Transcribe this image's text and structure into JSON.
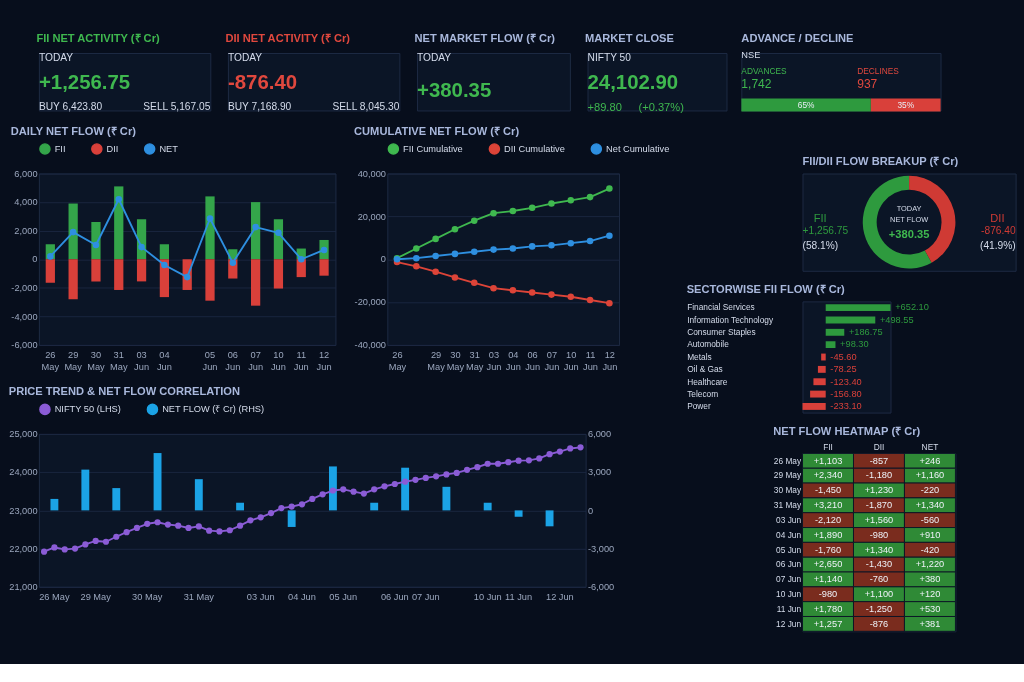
{
  "chart_data": [
    {
      "type": "other",
      "title": "FII NET ACTIVITY (₹ Cr)",
      "annotations": [
        "TODAY",
        "+1,256.75",
        "BUY  6,423.80",
        "SELL  5,167.05"
      ]
    },
    {
      "type": "other",
      "title": "DII NET ACTIVITY (₹ Cr)",
      "annotations": [
        "TODAY",
        "-876.40",
        "BUY  7,168.90",
        "SELL  8,045.30"
      ]
    },
    {
      "type": "other",
      "title": "NET MARKET FLOW (₹ Cr)",
      "annotations": [
        "TODAY",
        "+380.35"
      ]
    },
    {
      "type": "other",
      "title": "MARKET CLOSE",
      "annotations": [
        "NIFTY 50",
        "24,102.90",
        "+89.80",
        "(+0.37%)"
      ]
    },
    {
      "type": "bar",
      "title": "ADVANCE / DECLINE",
      "orientation": "horizontal",
      "stacked": true,
      "categories": [
        null
      ],
      "annotations": [
        "NSE",
        "ADVANCES",
        "1,742",
        "DECLINES",
        "937"
      ],
      "series": [
        {
          "color": "#2e9a3e",
          "values": [
            65
          ],
          "value_labels": [
            "65%"
          ]
        },
        {
          "color": "#d9403a",
          "values": [
            35
          ],
          "value_labels": [
            "35%"
          ]
        }
      ]
    },
    {
      "type": "bar",
      "title": "DAILY NET FLOW (₹ Cr)",
      "stacked": true,
      "categories": [
        "26 May",
        "29 May",
        "30 May",
        "31 May",
        "03 Jun",
        "04 Jun",
        null,
        "05 Jun",
        "06 Jun",
        "07 Jun",
        "10 Jun",
        "11 Jun",
        "12 Jun"
      ],
      "ylim": [
        -6000,
        6000
      ],
      "yticks": [
        {
          "value": -6000,
          "label": "-6,000"
        },
        {
          "value": -4000,
          "label": "-4,000"
        },
        {
          "value": -2000,
          "label": "-2,000"
        },
        0,
        {
          "value": 2000,
          "label": "2,000"
        },
        {
          "value": 4000,
          "label": "4,000"
        },
        {
          "value": 6000,
          "label": "6,000"
        }
      ],
      "grid": "y",
      "legend": "top",
      "marker": "circle",
      "series": [
        {
          "name": "FII",
          "type": "bar",
          "color": "#34a54a",
          "values": [
            1050,
            3900,
            2600,
            5100,
            2800,
            1050,
            null,
            4400,
            700,
            4000,
            2800,
            750,
            1350
          ]
        },
        {
          "name": "DII",
          "type": "bar",
          "color": "#d9403a",
          "values": [
            -1650,
            -2800,
            -1550,
            -2150,
            -1550,
            -2650,
            -2150,
            -2900,
            -1350,
            -3250,
            -2050,
            -1250,
            -1150
          ]
        },
        {
          "name": "NET",
          "type": "line",
          "color": "#2e8fe0",
          "values": [
            200,
            1900,
            1000,
            4200,
            850,
            -400,
            -1250,
            2850,
            -250,
            2250,
            1850,
            0,
            650
          ]
        }
      ]
    },
    {
      "type": "line",
      "title": "CUMULATIVE NET FLOW (₹ Cr)",
      "categories": [
        "26 May",
        null,
        "29 May",
        "30 May",
        "31 May",
        "03 Jun",
        "04 Jun",
        "06 Jun",
        "07 Jun",
        "10 Jun",
        "11 Jun",
        "12 Jun"
      ],
      "ylim": [
        -40000,
        40000
      ],
      "yticks": [
        {
          "value": -40000,
          "label": "-40,000"
        },
        {
          "value": -20000,
          "label": "-20,000"
        },
        0,
        {
          "value": 20000,
          "label": "20,000"
        },
        {
          "value": 40000,
          "label": "40,000"
        }
      ],
      "grid": "y",
      "legend": "top",
      "marker": "circle",
      "series": [
        {
          "name": "FII Cumulative",
          "color": "#3fb84f",
          "values": [
            500,
            5000,
            9500,
            14000,
            18000,
            21500,
            22500,
            24000,
            26000,
            27500,
            29000,
            33000
          ]
        },
        {
          "name": "DII Cumulative",
          "color": "#dd4438",
          "values": [
            -1300,
            -3300,
            -5800,
            -8500,
            -11000,
            -13500,
            -14500,
            -15500,
            -16500,
            -17500,
            -19000,
            -20500
          ]
        },
        {
          "name": "Net Cumulative",
          "color": "#2e8fe0",
          "values": [
            0,
            500,
            1500,
            2500,
            3500,
            4500,
            5000,
            6000,
            6500,
            7500,
            8500,
            11000
          ]
        }
      ]
    },
    {
      "type": "donut",
      "title": "FII/DII FLOW BREAKUP (₹ Cr)",
      "categories": [
        "FII",
        "DII"
      ],
      "values": [
        58.1,
        41.9
      ],
      "colors": [
        "#2e9a3e",
        "#cf3a34"
      ],
      "annotations": [
        "+1,256.75",
        "(58.1%)",
        "-876.40",
        "(41.9%)",
        "TODAY",
        "NET FLOW",
        "+380.35"
      ]
    },
    {
      "type": "bar",
      "title": "SECTORWISE FII FLOW (₹ Cr)",
      "orientation": "horizontal",
      "categories": [
        "Financial Services",
        "Information Technology",
        "Consumer Staples",
        "Automobile",
        "Metals",
        "Oil & Gas",
        "Healthcare",
        "Telecom",
        "Power"
      ],
      "values": [
        652.1,
        498.55,
        186.75,
        98.3,
        -45.6,
        -78.25,
        -123.4,
        -156.8,
        -233.1
      ],
      "colors": [
        "#2e9a3e",
        "#2e9a3e",
        "#2e9a3e",
        "#2e9a3e",
        "#d9403a",
        "#d9403a",
        "#d9403a",
        "#d9403a",
        "#d9403a"
      ],
      "value_labels": [
        "+652.10",
        "+498.55",
        "+186.75",
        "+98.30",
        "-45.60",
        "-78.25",
        "-123.40",
        "-156.80",
        "-233.10"
      ]
    },
    {
      "type": "line",
      "title": "PRICE TREND & NET FLOW CORRELATION",
      "categories": [
        null,
        "26 May",
        null,
        null,
        null,
        "29 May",
        null,
        null,
        null,
        null,
        "30 May",
        null,
        null,
        null,
        null,
        "31 May",
        null,
        null,
        null,
        null,
        null,
        "03 Jun",
        null,
        null,
        null,
        "04 Jun",
        null,
        null,
        null,
        "05 Jun",
        null,
        null,
        null,
        null,
        "06 Jun",
        null,
        null,
        "07 Jun",
        null,
        null,
        null,
        null,
        null,
        "10 Jun",
        null,
        null,
        "11 Jun",
        null,
        null,
        null,
        "12 Jun",
        null,
        null
      ],
      "ylim": [
        21000,
        25000
      ],
      "yticks": [
        {
          "value": 21000,
          "label": "21,000"
        },
        {
          "value": 22000,
          "label": "22,000"
        },
        {
          "value": 23000,
          "label": "23,000"
        },
        {
          "value": 24000,
          "label": "24,000"
        },
        {
          "value": 25000,
          "label": "25,000"
        }
      ],
      "y2lim": [
        -6000,
        6000
      ],
      "y2ticks": [
        {
          "value": -6000,
          "label": "-6,000"
        },
        {
          "value": -3000,
          "label": "-3,000"
        },
        0,
        {
          "value": 3000,
          "label": "3,000"
        },
        {
          "value": 6000,
          "label": "6,000"
        }
      ],
      "grid": "y",
      "legend": "top",
      "marker": "circle",
      "series": [
        {
          "name": "NIFTY 50 (LHS)",
          "type": "line",
          "color": "#8b5cd6",
          "values": [
            21920,
            22030,
            21980,
            22000,
            22110,
            22200,
            22180,
            22310,
            22430,
            22540,
            22650,
            22690,
            22630,
            22600,
            22540,
            22580,
            22470,
            22450,
            22480,
            22600,
            22740,
            22820,
            22930,
            23060,
            23100,
            23160,
            23300,
            23420,
            23520,
            23550,
            23490,
            23440,
            23550,
            23630,
            23690,
            23750,
            23800,
            23850,
            23890,
            23940,
            23980,
            24060,
            24130,
            24220,
            24220,
            24260,
            24300,
            24310,
            24360,
            24470,
            24540,
            24620,
            24650
          ]
        },
        {
          "name": "NET FLOW (₹ Cr) (RHS)",
          "type": "bar",
          "axis": "y2",
          "color": "#1ba3e6",
          "values": [
            null,
            900,
            null,
            null,
            3200,
            null,
            null,
            1750,
            null,
            null,
            null,
            4500,
            null,
            null,
            null,
            2450,
            null,
            null,
            null,
            600,
            null,
            null,
            null,
            null,
            -1300,
            null,
            null,
            null,
            3450,
            null,
            null,
            null,
            600,
            null,
            null,
            3350,
            null,
            null,
            null,
            1850,
            null,
            null,
            null,
            600,
            null,
            null,
            -500,
            null,
            null,
            -1250,
            null,
            null,
            null
          ]
        }
      ]
    },
    {
      "type": "heatmap",
      "title": "NET FLOW HEATMAP (₹ Cr)",
      "categories": [
        "FII",
        "DII",
        "NET"
      ],
      "y_categories": [
        "26 May",
        "29 May",
        "30 May",
        "31 May",
        "03 Jun",
        "04 Jun",
        "05 Jun",
        "06 Jun",
        "07 Jun",
        "10 Jun",
        "11 Jun",
        "12 Jun"
      ],
      "cells": [
        [
          1103,
          -857,
          246
        ],
        [
          2340,
          -1180,
          1160
        ],
        [
          -1450,
          1230,
          -220
        ],
        [
          3210,
          -1870,
          1340
        ],
        [
          -2120,
          1560,
          -560
        ],
        [
          1890,
          -980,
          910
        ],
        [
          -1760,
          1340,
          -420
        ],
        [
          2650,
          -1430,
          1220
        ],
        [
          1140,
          -760,
          380
        ],
        [
          -980,
          1100,
          120
        ],
        [
          1780,
          -1250,
          530
        ],
        [
          1257,
          -876,
          381
        ]
      ],
      "cell_labels": [
        [
          "+1,103",
          "-857",
          "+246"
        ],
        [
          "+2,340",
          "-1,180",
          "+1,160"
        ],
        [
          "-1,450",
          "+1,230",
          "-220"
        ],
        [
          "+3,210",
          "-1,870",
          "+1,340"
        ],
        [
          "-2,120",
          "+1,560",
          "-560"
        ],
        [
          "+1,890",
          "-980",
          "+910"
        ],
        [
          "-1,760",
          "+1,340",
          "-420"
        ],
        [
          "+2,650",
          "-1,430",
          "+1,220"
        ],
        [
          "+1,140",
          "-760",
          "+380"
        ],
        [
          "-980",
          "+1,100",
          "+120"
        ],
        [
          "+1,780",
          "-1,250",
          "+530"
        ],
        [
          "+1,257",
          "-876",
          "+381"
        ]
      ]
    }
  ]
}
